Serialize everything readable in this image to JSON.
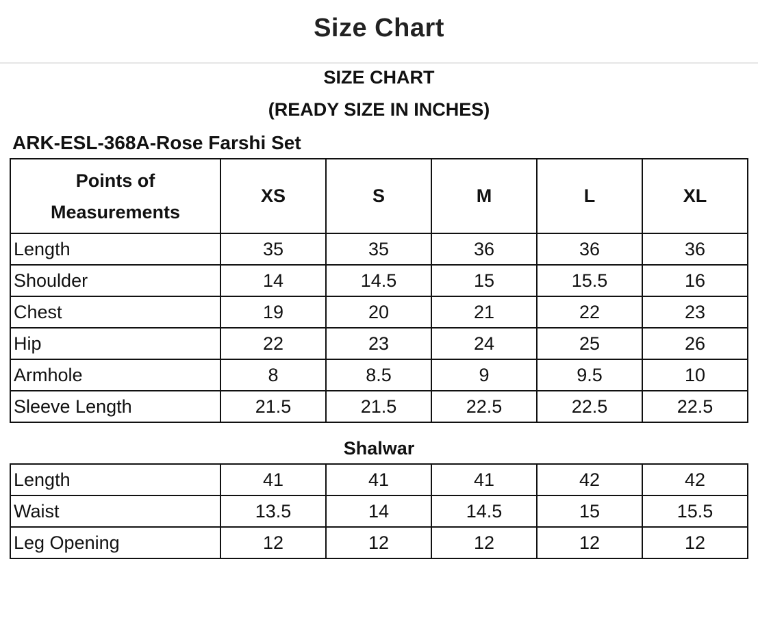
{
  "header": {
    "title": "Size Chart"
  },
  "chart_image": {
    "title": "SIZE CHART",
    "subtitle": "(READY SIZE IN INCHES)",
    "product": "ARK-ESL-368A-Rose Farshi Set",
    "columns": [
      "Points of Measurements",
      "XS",
      "S",
      "M",
      "L",
      "XL"
    ],
    "shirt_rows": [
      {
        "label": "Length",
        "values": [
          "35",
          "35",
          "36",
          "36",
          "36"
        ]
      },
      {
        "label": "Shoulder",
        "values": [
          "14",
          "14.5",
          "15",
          "15.5",
          "16"
        ]
      },
      {
        "label": "Chest",
        "values": [
          "19",
          "20",
          "21",
          "22",
          "23"
        ]
      },
      {
        "label": "Hip",
        "values": [
          "22",
          "23",
          "24",
          "25",
          "26"
        ]
      },
      {
        "label": "Armhole",
        "values": [
          "8",
          "8.5",
          "9",
          "9.5",
          "10"
        ]
      },
      {
        "label": "Sleeve Length",
        "values": [
          "21.5",
          "21.5",
          "22.5",
          "22.5",
          "22.5"
        ]
      }
    ],
    "shalwar_title": "Shalwar",
    "shalwar_rows": [
      {
        "label": "Length",
        "values": [
          "41",
          "41",
          "41",
          "42",
          "42"
        ]
      },
      {
        "label": "Waist",
        "values": [
          "13.5",
          "14",
          "14.5",
          "15",
          "15.5"
        ]
      },
      {
        "label": "Leg Opening",
        "values": [
          "12",
          "12",
          "12",
          "12",
          "12"
        ]
      }
    ]
  }
}
